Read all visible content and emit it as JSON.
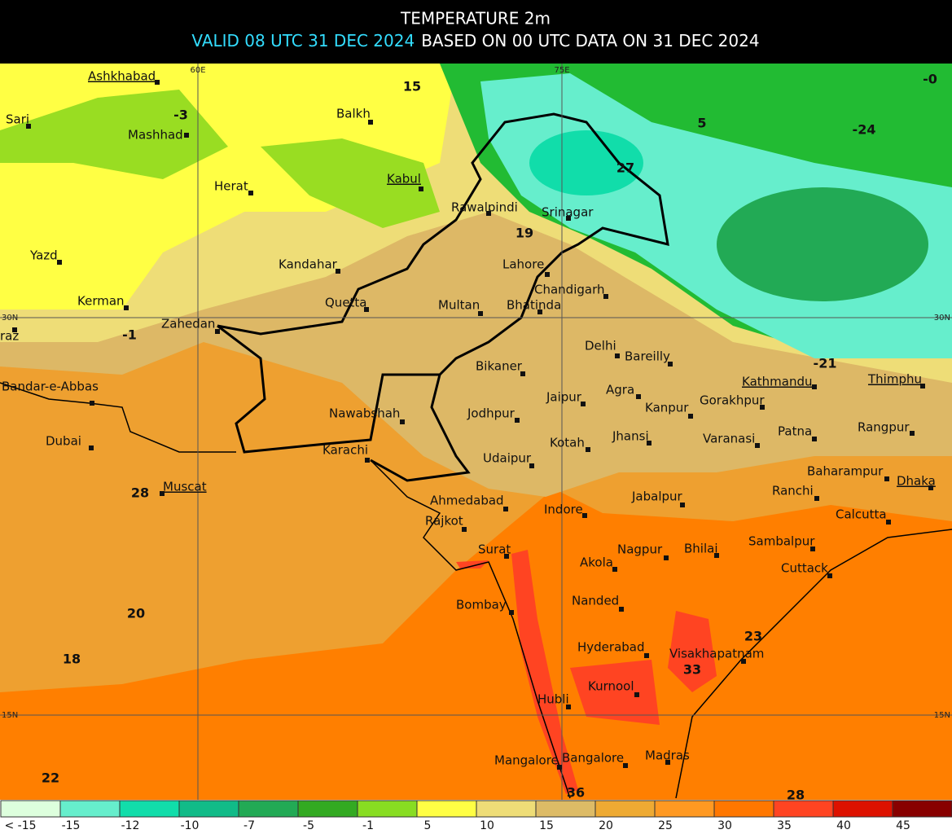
{
  "header": {
    "title": "TEMPERATURE 2m",
    "valid": "VALID 08 UTC 31 DEC 2024",
    "based": "BASED ON 00 UTC DATA ON 31 DEC 2024"
  },
  "grid_labels": [
    "60E",
    "75E",
    "30N",
    "30N",
    "15N",
    "15N"
  ],
  "cities": [
    "Ashkhabad",
    "Sari",
    "Mashhad",
    "Balkh",
    "Herat",
    "Kabul",
    "Rawalpindi",
    "Srinagar",
    "Kandahar",
    "Yazd",
    "Lahore",
    "Kerman",
    "Quetta",
    "Multan",
    "Bhatinda",
    "Chandigarh",
    "Zahedan",
    "raz",
    "Delhi",
    "Bareilly",
    "Bikaner",
    "Kathmandu",
    "Thimphu",
    "Bandar-e-Abbas",
    "Jaipur",
    "Agra",
    "Gorakhpur",
    "Kanpur",
    "Nawabshah",
    "Jodhpur",
    "Dubai",
    "Jhansi",
    "Varanasi",
    "Patna",
    "Rangpur",
    "Karachi",
    "Kotah",
    "Udaipur",
    "Baharampur",
    "Muscat",
    "Ranchi",
    "Dhaka",
    "Ahmedabad",
    "Indore",
    "Jabalpur",
    "Rajkot",
    "Calcutta",
    "Surat",
    "Nagpur",
    "Bhilai",
    "Sambalpur",
    "Akola",
    "Cuttack",
    "Nanded",
    "Bombay",
    "Hyderabad",
    "Visakhapatnam",
    "Kurnool",
    "Hubli",
    "Madras",
    "Mangalore",
    "Bangalore"
  ],
  "values": [
    "15",
    "-3",
    "5",
    "-24",
    "27",
    "19",
    "-0",
    "-1",
    "-21",
    "28",
    "20",
    "18",
    "23",
    "33",
    "22",
    "36",
    "28"
  ],
  "legend": {
    "labels": [
      "< -15",
      "-15",
      "-12",
      "-10",
      "-7",
      "-5",
      "-1",
      "5",
      "10",
      "15",
      "20",
      "25",
      "30",
      "35",
      "40",
      "45"
    ],
    "colors": [
      "#ddffdd",
      "#66eecc",
      "#11ddaa",
      "#11bb88",
      "#22aa55",
      "#33aa22",
      "#88dd22",
      "#ffff44",
      "#eedd77",
      "#ddbb66",
      "#eeaa33",
      "#ff9922",
      "#ff7700",
      "#ff4422",
      "#dd1100",
      "#880000"
    ]
  }
}
